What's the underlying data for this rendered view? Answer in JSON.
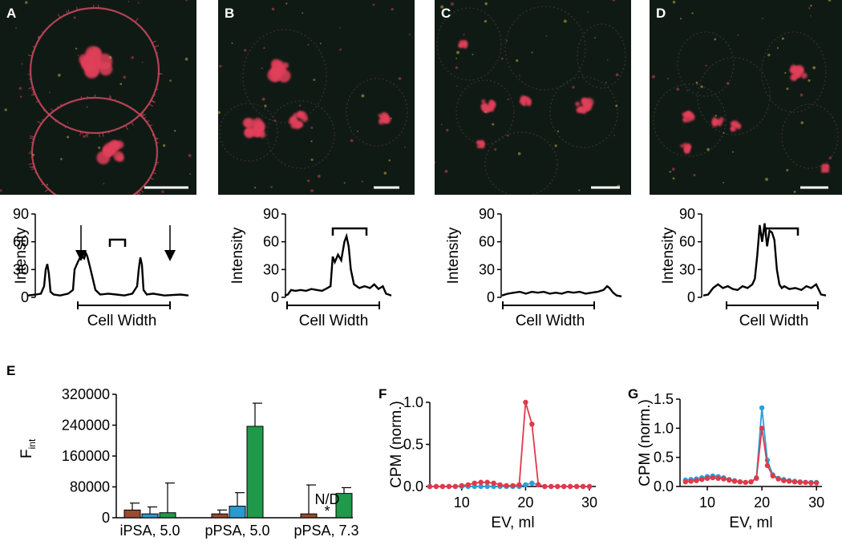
{
  "panels": {
    "A": {
      "label": "A"
    },
    "B": {
      "label": "B"
    },
    "C": {
      "label": "C"
    },
    "D": {
      "label": "D"
    },
    "E": {
      "label": "E"
    },
    "F": {
      "label": "F"
    },
    "G": {
      "label": "G"
    }
  },
  "micrograph_colors": {
    "background": "#101a14",
    "stain": "#e0405a"
  },
  "chart_data": [
    {
      "panel": "A",
      "type": "line",
      "ylabel": "Intensity",
      "xlabel": "Cell Width",
      "yticks": [
        "0",
        "30",
        "60",
        "90"
      ],
      "ylim": [
        0,
        90
      ],
      "annotations": [
        "arrow at left membrane peak",
        "bracket over nucleus peak",
        "arrow at right membrane peak"
      ],
      "x": [
        0,
        5,
        8,
        10,
        11,
        12,
        13,
        14,
        16,
        20,
        25,
        28,
        29,
        31,
        33,
        35,
        36,
        37,
        39,
        42,
        45,
        50,
        55,
        60,
        65,
        68,
        69,
        70,
        71,
        72,
        74,
        78,
        85,
        95,
        100
      ],
      "y": [
        2,
        3,
        4,
        12,
        30,
        36,
        25,
        6,
        3,
        2,
        4,
        8,
        30,
        38,
        45,
        42,
        48,
        44,
        30,
        8,
        3,
        4,
        3,
        2,
        4,
        12,
        30,
        43,
        35,
        8,
        3,
        4,
        2,
        3,
        2
      ]
    },
    {
      "panel": "B",
      "type": "line",
      "ylabel": "Intensity",
      "xlabel": "Cell Width",
      "yticks": [
        "0",
        "30",
        "60",
        "90"
      ],
      "ylim": [
        0,
        90
      ],
      "annotations": [
        "bracket over nucleus peaks"
      ],
      "x": [
        0,
        3,
        6,
        10,
        15,
        20,
        25,
        30,
        35,
        40,
        43,
        45,
        47,
        50,
        53,
        56,
        58,
        60,
        62,
        65,
        70,
        75,
        80,
        84,
        88,
        92,
        95,
        100
      ],
      "y": [
        2,
        3,
        8,
        7,
        8,
        7,
        9,
        8,
        7,
        10,
        12,
        44,
        38,
        46,
        40,
        60,
        66,
        55,
        30,
        14,
        10,
        12,
        10,
        14,
        9,
        12,
        4,
        2
      ]
    },
    {
      "panel": "C",
      "type": "line",
      "ylabel": "Intensity",
      "xlabel": "Cell Width",
      "yticks": [
        "0",
        "30",
        "60",
        "90"
      ],
      "ylim": [
        0,
        90
      ],
      "x": [
        0,
        5,
        10,
        15,
        20,
        25,
        30,
        35,
        40,
        45,
        50,
        55,
        60,
        65,
        70,
        75,
        80,
        85,
        88,
        90,
        93,
        96,
        100
      ],
      "y": [
        2,
        4,
        5,
        6,
        4,
        6,
        5,
        6,
        4,
        5,
        4,
        6,
        5,
        6,
        4,
        5,
        6,
        8,
        12,
        10,
        5,
        2,
        1
      ]
    },
    {
      "panel": "D",
      "type": "line",
      "ylabel": "Intensity",
      "xlabel": "Cell Width",
      "yticks": [
        "0",
        "30",
        "60",
        "90"
      ],
      "ylim": [
        0,
        90
      ],
      "annotations": [
        "bracket over nucleus peaks"
      ],
      "x": [
        0,
        4,
        8,
        12,
        16,
        20,
        24,
        28,
        32,
        36,
        40,
        42,
        44,
        46,
        48,
        50,
        52,
        54,
        56,
        58,
        60,
        62,
        64,
        66,
        70,
        75,
        80,
        84,
        88,
        92,
        96,
        100
      ],
      "y": [
        2,
        3,
        10,
        14,
        10,
        12,
        9,
        8,
        12,
        10,
        14,
        20,
        45,
        78,
        60,
        80,
        55,
        72,
        70,
        62,
        30,
        14,
        10,
        12,
        9,
        10,
        8,
        12,
        10,
        14,
        3,
        2
      ]
    },
    {
      "panel": "E",
      "type": "bar",
      "ylabel": "F_int",
      "categories": [
        "iPSA, 5.0",
        "pPSA, 5.0",
        "pPSA, 7.3"
      ],
      "yticks": [
        "0",
        "80000",
        "160000",
        "240000",
        "320000"
      ],
      "ylim": [
        0,
        320000
      ],
      "series": [
        {
          "color": "#9a4a30",
          "values": [
            20000,
            10000,
            10000
          ],
          "errors": [
            18000,
            10000,
            75000
          ]
        },
        {
          "color": "#2a9ad0",
          "values": [
            10000,
            30000,
            null
          ],
          "errors": [
            18000,
            35000,
            null
          ]
        },
        {
          "color": "#1e9a4a",
          "values": [
            13000,
            237000,
            63000
          ],
          "errors": [
            77000,
            60000,
            15000
          ]
        }
      ],
      "annotations": [
        "N/D",
        "*"
      ]
    },
    {
      "panel": "F",
      "type": "line",
      "ylabel": "CPM (norm.)",
      "xlabel": "EV, ml",
      "xlim": [
        5,
        31
      ],
      "xticks": [
        "10",
        "20",
        "30"
      ],
      "ylim": [
        0,
        1.0
      ],
      "yticks": [
        "0.0",
        "0.5",
        "1.0"
      ],
      "x": [
        5,
        6,
        7,
        8,
        9,
        10,
        11,
        12,
        13,
        14,
        15,
        16,
        17,
        18,
        19,
        20,
        21,
        22,
        23,
        24,
        25,
        26,
        27,
        28,
        29,
        30
      ],
      "series": [
        {
          "color": "#2aa0d8",
          "values": [
            0,
            0,
            0,
            0,
            0,
            0,
            0,
            0,
            0,
            0,
            0,
            0,
            0,
            0,
            0,
            0.02,
            0.04,
            0.02,
            0,
            0,
            0,
            0,
            0,
            0,
            0,
            0
          ]
        },
        {
          "color": "#e03a48",
          "values": [
            0,
            0,
            0,
            0,
            0,
            0.01,
            0.02,
            0.04,
            0.05,
            0.05,
            0.04,
            0.02,
            0.01,
            0.01,
            0.02,
            1.0,
            0.74,
            0.02,
            0,
            0,
            0,
            0,
            0,
            0,
            0,
            0
          ]
        }
      ]
    },
    {
      "panel": "G",
      "type": "line",
      "ylabel": "CPM (norm.)",
      "xlabel": "EV, ml",
      "xlim": [
        5,
        31
      ],
      "xticks": [
        "10",
        "20",
        "30"
      ],
      "ylim": [
        0,
        1.5
      ],
      "yticks": [
        "0.0",
        "0.5",
        "1.0",
        "1.5"
      ],
      "x": [
        6,
        7,
        8,
        9,
        10,
        11,
        12,
        13,
        14,
        15,
        16,
        17,
        18,
        19,
        20,
        21,
        22,
        23,
        24,
        25,
        26,
        27,
        28,
        29,
        30
      ],
      "series": [
        {
          "color": "#2aa0d8",
          "values": [
            0.11,
            0.12,
            0.13,
            0.15,
            0.17,
            0.18,
            0.17,
            0.15,
            0.12,
            0.1,
            0.08,
            0.07,
            0.08,
            0.15,
            1.35,
            0.45,
            0.2,
            0.14,
            0.12,
            0.1,
            0.09,
            0.08,
            0.07,
            0.07,
            0.07
          ]
        },
        {
          "color": "#e03a48",
          "values": [
            0.08,
            0.09,
            0.1,
            0.12,
            0.14,
            0.15,
            0.14,
            0.13,
            0.11,
            0.09,
            0.08,
            0.07,
            0.08,
            0.14,
            1.0,
            0.36,
            0.18,
            0.13,
            0.1,
            0.09,
            0.08,
            0.07,
            0.07,
            0.06,
            0.06
          ]
        }
      ]
    }
  ]
}
